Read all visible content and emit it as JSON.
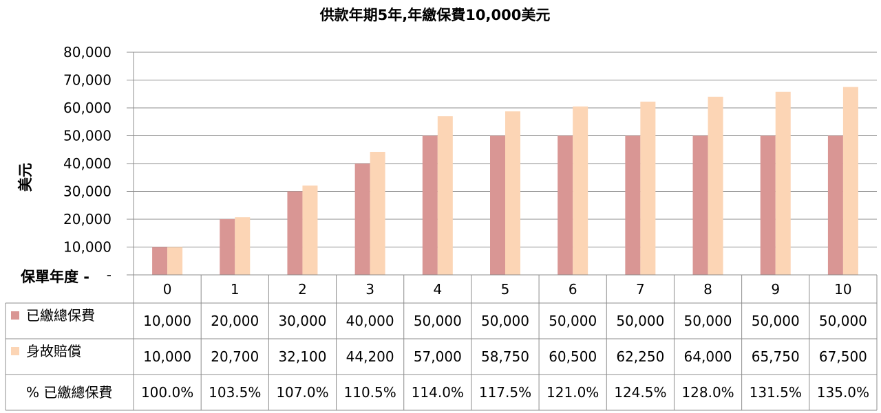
{
  "chart_data": {
    "type": "bar",
    "title": "供款年期5年,年繳保費10,000美元",
    "ylabel": "美元",
    "xlabel": "保單年度 -",
    "ylim": [
      0,
      80000
    ],
    "yticks": [
      "80,000",
      "70,000",
      "60,000",
      "50,000",
      "40,000",
      "30,000",
      "20,000",
      "10,000",
      "-"
    ],
    "grid": true,
    "legend": "data-table",
    "categories": [
      "0",
      "1",
      "2",
      "3",
      "4",
      "5",
      "6",
      "7",
      "8",
      "9",
      "10"
    ],
    "series": [
      {
        "name": "已繳總保費",
        "color": "#D99694",
        "values": [
          10000,
          20000,
          30000,
          40000,
          50000,
          50000,
          50000,
          50000,
          50000,
          50000,
          50000
        ],
        "labels": [
          "10,000",
          "20,000",
          "30,000",
          "40,000",
          "50,000",
          "50,000",
          "50,000",
          "50,000",
          "50,000",
          "50,000",
          "50,000"
        ]
      },
      {
        "name": "身故賠償",
        "color": "#FCD5B5",
        "values": [
          10000,
          20700,
          32100,
          44200,
          57000,
          58750,
          60500,
          62250,
          64000,
          65750,
          67500
        ],
        "labels": [
          "10,000",
          "20,700",
          "32,100",
          "44,200",
          "57,000",
          "58,750",
          "60,500",
          "62,250",
          "64,000",
          "65,750",
          "67,500"
        ]
      }
    ],
    "table_rows": [
      {
        "name": "% 已繳總保費",
        "labels": [
          "100.0%",
          "103.5%",
          "107.0%",
          "110.5%",
          "114.0%",
          "117.5%",
          "121.0%",
          "124.5%",
          "128.0%",
          "131.5%",
          "135.0%"
        ]
      }
    ]
  }
}
